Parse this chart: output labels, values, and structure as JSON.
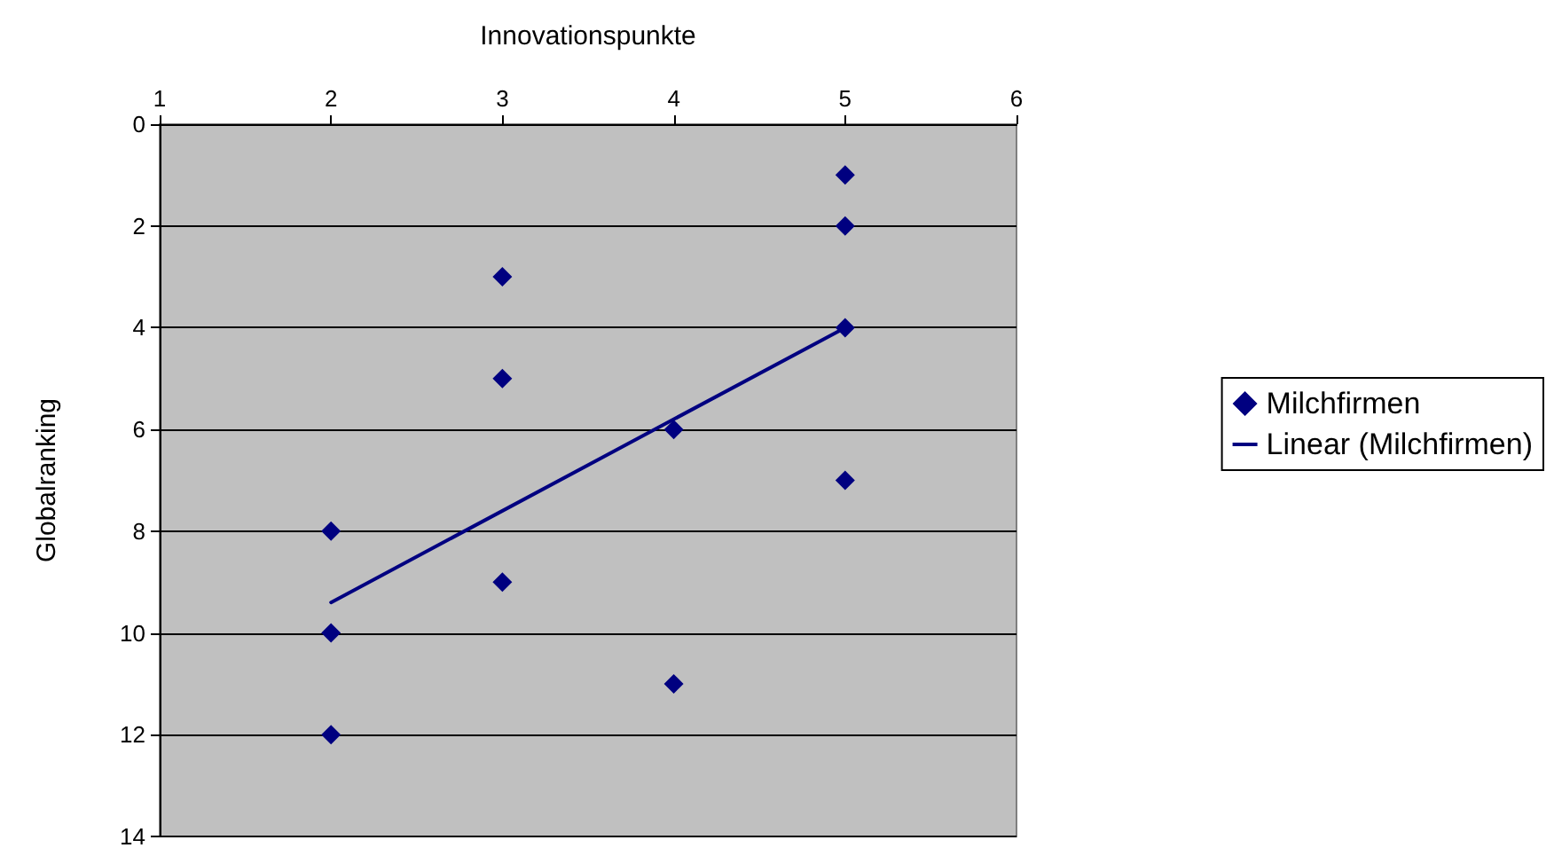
{
  "chart_data": {
    "type": "scatter",
    "xlabel": "Innovationspunkte",
    "ylabel": "Globalranking",
    "xlim": [
      1,
      6
    ],
    "xticks": [
      1,
      2,
      3,
      4,
      5,
      6
    ],
    "ylim": [
      14,
      0
    ],
    "yticks": [
      0,
      2,
      4,
      6,
      8,
      10,
      12,
      14
    ],
    "grid": "y",
    "legend": "right",
    "marker": "diamond",
    "series": [
      {
        "name": "Milchfirmen",
        "color": "#000080",
        "x": [
          5,
          5,
          3,
          5,
          3,
          4,
          5,
          2,
          3,
          2,
          4,
          2
        ],
        "values": [
          1,
          2,
          3,
          4,
          5,
          6,
          7,
          8,
          9,
          10,
          11,
          12
        ]
      },
      {
        "name": "Linear (Milchfirmen)",
        "type": "line",
        "color": "#000080",
        "marker": "none",
        "line_style": "solid",
        "x": [
          2,
          5
        ],
        "values": [
          9.4,
          4.0
        ]
      }
    ]
  }
}
